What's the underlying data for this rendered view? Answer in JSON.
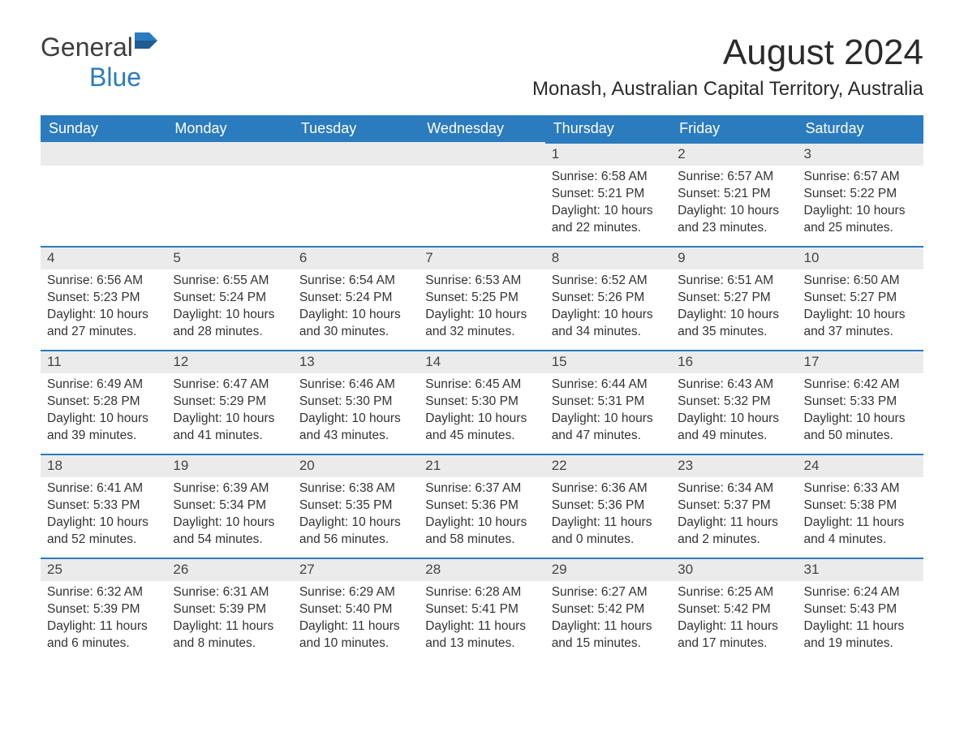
{
  "logo": {
    "text_general": "General",
    "text_blue": "Blue"
  },
  "title": "August 2024",
  "location": "Monash, Australian Capital Territory, Australia",
  "day_headers": [
    "Sunday",
    "Monday",
    "Tuesday",
    "Wednesday",
    "Thursday",
    "Friday",
    "Saturday"
  ],
  "colors": {
    "header_bg": "#2b7bbf",
    "header_text": "#ffffff",
    "daynum_bg": "#ebebeb",
    "daynum_border": "#2b7bbf",
    "body_text": "#333333",
    "page_bg": "#ffffff",
    "logo_gray": "#3e3e3e",
    "logo_blue": "#2b7bbf"
  },
  "weeks": [
    [
      {
        "n": "",
        "sunrise": "",
        "sunset": "",
        "daylight": ""
      },
      {
        "n": "",
        "sunrise": "",
        "sunset": "",
        "daylight": ""
      },
      {
        "n": "",
        "sunrise": "",
        "sunset": "",
        "daylight": ""
      },
      {
        "n": "",
        "sunrise": "",
        "sunset": "",
        "daylight": ""
      },
      {
        "n": "1",
        "sunrise": "Sunrise: 6:58 AM",
        "sunset": "Sunset: 5:21 PM",
        "daylight": "Daylight: 10 hours and 22 minutes."
      },
      {
        "n": "2",
        "sunrise": "Sunrise: 6:57 AM",
        "sunset": "Sunset: 5:21 PM",
        "daylight": "Daylight: 10 hours and 23 minutes."
      },
      {
        "n": "3",
        "sunrise": "Sunrise: 6:57 AM",
        "sunset": "Sunset: 5:22 PM",
        "daylight": "Daylight: 10 hours and 25 minutes."
      }
    ],
    [
      {
        "n": "4",
        "sunrise": "Sunrise: 6:56 AM",
        "sunset": "Sunset: 5:23 PM",
        "daylight": "Daylight: 10 hours and 27 minutes."
      },
      {
        "n": "5",
        "sunrise": "Sunrise: 6:55 AM",
        "sunset": "Sunset: 5:24 PM",
        "daylight": "Daylight: 10 hours and 28 minutes."
      },
      {
        "n": "6",
        "sunrise": "Sunrise: 6:54 AM",
        "sunset": "Sunset: 5:24 PM",
        "daylight": "Daylight: 10 hours and 30 minutes."
      },
      {
        "n": "7",
        "sunrise": "Sunrise: 6:53 AM",
        "sunset": "Sunset: 5:25 PM",
        "daylight": "Daylight: 10 hours and 32 minutes."
      },
      {
        "n": "8",
        "sunrise": "Sunrise: 6:52 AM",
        "sunset": "Sunset: 5:26 PM",
        "daylight": "Daylight: 10 hours and 34 minutes."
      },
      {
        "n": "9",
        "sunrise": "Sunrise: 6:51 AM",
        "sunset": "Sunset: 5:27 PM",
        "daylight": "Daylight: 10 hours and 35 minutes."
      },
      {
        "n": "10",
        "sunrise": "Sunrise: 6:50 AM",
        "sunset": "Sunset: 5:27 PM",
        "daylight": "Daylight: 10 hours and 37 minutes."
      }
    ],
    [
      {
        "n": "11",
        "sunrise": "Sunrise: 6:49 AM",
        "sunset": "Sunset: 5:28 PM",
        "daylight": "Daylight: 10 hours and 39 minutes."
      },
      {
        "n": "12",
        "sunrise": "Sunrise: 6:47 AM",
        "sunset": "Sunset: 5:29 PM",
        "daylight": "Daylight: 10 hours and 41 minutes."
      },
      {
        "n": "13",
        "sunrise": "Sunrise: 6:46 AM",
        "sunset": "Sunset: 5:30 PM",
        "daylight": "Daylight: 10 hours and 43 minutes."
      },
      {
        "n": "14",
        "sunrise": "Sunrise: 6:45 AM",
        "sunset": "Sunset: 5:30 PM",
        "daylight": "Daylight: 10 hours and 45 minutes."
      },
      {
        "n": "15",
        "sunrise": "Sunrise: 6:44 AM",
        "sunset": "Sunset: 5:31 PM",
        "daylight": "Daylight: 10 hours and 47 minutes."
      },
      {
        "n": "16",
        "sunrise": "Sunrise: 6:43 AM",
        "sunset": "Sunset: 5:32 PM",
        "daylight": "Daylight: 10 hours and 49 minutes."
      },
      {
        "n": "17",
        "sunrise": "Sunrise: 6:42 AM",
        "sunset": "Sunset: 5:33 PM",
        "daylight": "Daylight: 10 hours and 50 minutes."
      }
    ],
    [
      {
        "n": "18",
        "sunrise": "Sunrise: 6:41 AM",
        "sunset": "Sunset: 5:33 PM",
        "daylight": "Daylight: 10 hours and 52 minutes."
      },
      {
        "n": "19",
        "sunrise": "Sunrise: 6:39 AM",
        "sunset": "Sunset: 5:34 PM",
        "daylight": "Daylight: 10 hours and 54 minutes."
      },
      {
        "n": "20",
        "sunrise": "Sunrise: 6:38 AM",
        "sunset": "Sunset: 5:35 PM",
        "daylight": "Daylight: 10 hours and 56 minutes."
      },
      {
        "n": "21",
        "sunrise": "Sunrise: 6:37 AM",
        "sunset": "Sunset: 5:36 PM",
        "daylight": "Daylight: 10 hours and 58 minutes."
      },
      {
        "n": "22",
        "sunrise": "Sunrise: 6:36 AM",
        "sunset": "Sunset: 5:36 PM",
        "daylight": "Daylight: 11 hours and 0 minutes."
      },
      {
        "n": "23",
        "sunrise": "Sunrise: 6:34 AM",
        "sunset": "Sunset: 5:37 PM",
        "daylight": "Daylight: 11 hours and 2 minutes."
      },
      {
        "n": "24",
        "sunrise": "Sunrise: 6:33 AM",
        "sunset": "Sunset: 5:38 PM",
        "daylight": "Daylight: 11 hours and 4 minutes."
      }
    ],
    [
      {
        "n": "25",
        "sunrise": "Sunrise: 6:32 AM",
        "sunset": "Sunset: 5:39 PM",
        "daylight": "Daylight: 11 hours and 6 minutes."
      },
      {
        "n": "26",
        "sunrise": "Sunrise: 6:31 AM",
        "sunset": "Sunset: 5:39 PM",
        "daylight": "Daylight: 11 hours and 8 minutes."
      },
      {
        "n": "27",
        "sunrise": "Sunrise: 6:29 AM",
        "sunset": "Sunset: 5:40 PM",
        "daylight": "Daylight: 11 hours and 10 minutes."
      },
      {
        "n": "28",
        "sunrise": "Sunrise: 6:28 AM",
        "sunset": "Sunset: 5:41 PM",
        "daylight": "Daylight: 11 hours and 13 minutes."
      },
      {
        "n": "29",
        "sunrise": "Sunrise: 6:27 AM",
        "sunset": "Sunset: 5:42 PM",
        "daylight": "Daylight: 11 hours and 15 minutes."
      },
      {
        "n": "30",
        "sunrise": "Sunrise: 6:25 AM",
        "sunset": "Sunset: 5:42 PM",
        "daylight": "Daylight: 11 hours and 17 minutes."
      },
      {
        "n": "31",
        "sunrise": "Sunrise: 6:24 AM",
        "sunset": "Sunset: 5:43 PM",
        "daylight": "Daylight: 11 hours and 19 minutes."
      }
    ]
  ]
}
